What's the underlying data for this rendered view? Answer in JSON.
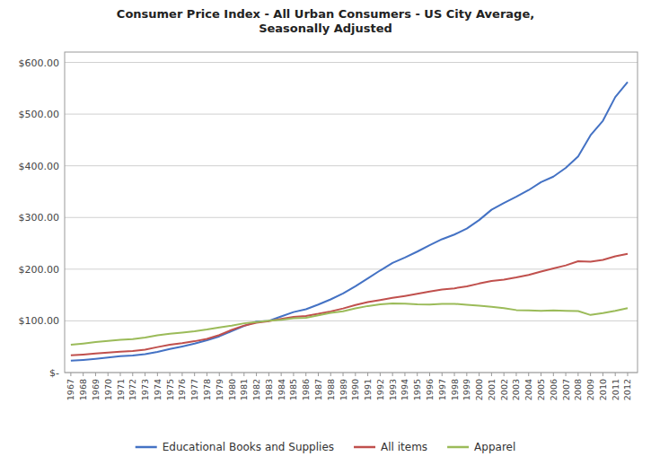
{
  "chart_data": {
    "type": "line",
    "title": "Consumer Price Index - All Urban Consumers - US City Average,\nSeasonally Adjusted",
    "x": [
      1967,
      1968,
      1969,
      1970,
      1971,
      1972,
      1973,
      1974,
      1975,
      1976,
      1977,
      1978,
      1979,
      1980,
      1981,
      1982,
      1983,
      1984,
      1985,
      1986,
      1987,
      1988,
      1989,
      1990,
      1991,
      1992,
      1993,
      1994,
      1995,
      1996,
      1997,
      1998,
      1999,
      2000,
      2001,
      2002,
      2003,
      2004,
      2005,
      2006,
      2007,
      2008,
      2009,
      2010,
      2011,
      2012
    ],
    "series": [
      {
        "name": "Educational Books and Supplies",
        "color": "#4472C4",
        "values": [
          22.8,
          24.5,
          26.5,
          29.0,
          31.5,
          33.0,
          35.5,
          40.0,
          45.5,
          50.5,
          56.0,
          62.5,
          70.0,
          80.0,
          90.0,
          98.5,
          100.0,
          108.5,
          117.0,
          122.5,
          131.5,
          141.5,
          153.0,
          167.0,
          182.0,
          197.5,
          212.0,
          222.5,
          234.0,
          246.5,
          258.0,
          267.0,
          278.5,
          295.0,
          315.0,
          328.0,
          340.0,
          353.0,
          368.5,
          379.0,
          396.0,
          418.0,
          459.0,
          487.0,
          533.0,
          562.0
        ]
      },
      {
        "name": "All items",
        "color": "#C0504D",
        "values": [
          33.4,
          34.8,
          36.7,
          38.8,
          40.5,
          41.8,
          44.4,
          49.3,
          53.8,
          56.9,
          60.6,
          65.2,
          72.6,
          82.4,
          90.9,
          96.5,
          99.6,
          103.9,
          107.6,
          109.6,
          113.6,
          118.3,
          124.0,
          130.7,
          136.2,
          140.3,
          144.5,
          148.2,
          152.4,
          156.9,
          160.5,
          163.0,
          166.6,
          172.2,
          177.1,
          179.9,
          184.0,
          188.9,
          195.3,
          201.6,
          207.3,
          215.3,
          214.5,
          218.1,
          224.9,
          229.6
        ]
      },
      {
        "name": "Apparel",
        "color": "#9BBB59",
        "values": [
          53.7,
          56.2,
          59.2,
          61.1,
          63.2,
          64.6,
          67.8,
          72.0,
          75.3,
          77.4,
          79.9,
          83.2,
          87.4,
          90.9,
          95.3,
          97.8,
          100.2,
          102.1,
          105.0,
          105.9,
          110.6,
          115.4,
          118.6,
          124.1,
          128.7,
          131.9,
          133.7,
          133.4,
          132.0,
          131.7,
          132.9,
          133.0,
          131.3,
          129.6,
          127.3,
          124.6,
          120.9,
          120.4,
          119.5,
          120.1,
          119.5,
          118.9,
          111.4,
          115.0,
          119.5,
          124.7
        ]
      }
    ],
    "xlim": [
      1966.5,
      2012.8
    ],
    "xticks": [
      1967,
      1968,
      1969,
      1970,
      1971,
      1972,
      1973,
      1974,
      1975,
      1976,
      1977,
      1978,
      1979,
      1980,
      1981,
      1982,
      1983,
      1984,
      1985,
      1986,
      1987,
      1988,
      1989,
      1990,
      1991,
      1992,
      1993,
      1994,
      1995,
      1996,
      1997,
      1998,
      1999,
      2000,
      2001,
      2002,
      2003,
      2004,
      2005,
      2006,
      2007,
      2008,
      2009,
      2010,
      2011,
      2012
    ],
    "ylim": [
      0,
      620
    ],
    "yticks": [
      {
        "value": 0,
        "label": "$-"
      },
      {
        "value": 100,
        "label": "$100.00"
      },
      {
        "value": 200,
        "label": "$200.00"
      },
      {
        "value": 300,
        "label": "$300.00"
      },
      {
        "value": 400,
        "label": "$400.00"
      },
      {
        "value": 500,
        "label": "$500.00"
      },
      {
        "value": 600,
        "label": "$600.00"
      }
    ],
    "grid": true,
    "legend": "bottom"
  }
}
